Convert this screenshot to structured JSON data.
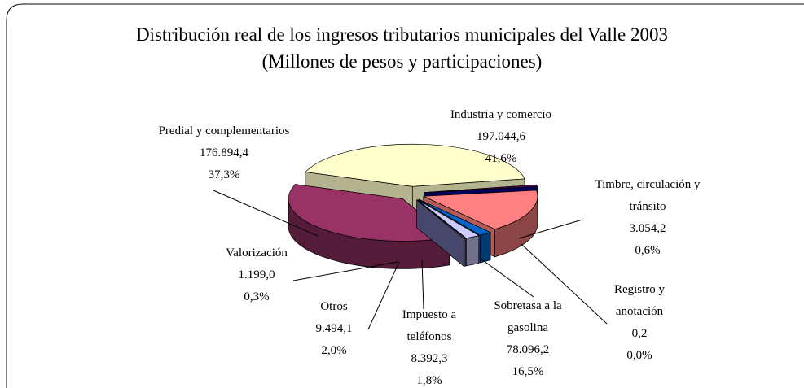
{
  "chart_data": {
    "type": "pie",
    "title": "Distribución real de los ingresos tributarios municipales del Valle 2003",
    "subtitle": "(Millones de pesos y participaciones)",
    "categories": [
      "Industria y comercio",
      "Timbre, circulación y tránsito",
      "Registro y anotación",
      "Sobretasa a la gasolina",
      "Impuesto a teléfonos",
      "Otros",
      "Valorización",
      "Predial y complementarios"
    ],
    "values": [
      197044.6,
      3054.2,
      0.2,
      78096.2,
      8392.3,
      9494.1,
      1199.0,
      176894.4
    ],
    "value_labels": [
      "197.044,6",
      "3.054,2",
      "0,2",
      "78.096,2",
      "8.392,3",
      "9.494,1",
      "1.199,0",
      "176.894,4"
    ],
    "shares": [
      41.6,
      0.6,
      0.0,
      16.5,
      1.8,
      2.0,
      0.3,
      37.3
    ],
    "share_labels": [
      "41,6%",
      "0,6%",
      "0,0%",
      "16,5%",
      "1,8%",
      "2,0%",
      "0,3%",
      "37,3%"
    ],
    "colors": [
      "#ffffcc",
      "#660066",
      "#000080",
      "#ff8080",
      "#0066cc",
      "#ccccff",
      "#666699",
      "#993366"
    ]
  }
}
